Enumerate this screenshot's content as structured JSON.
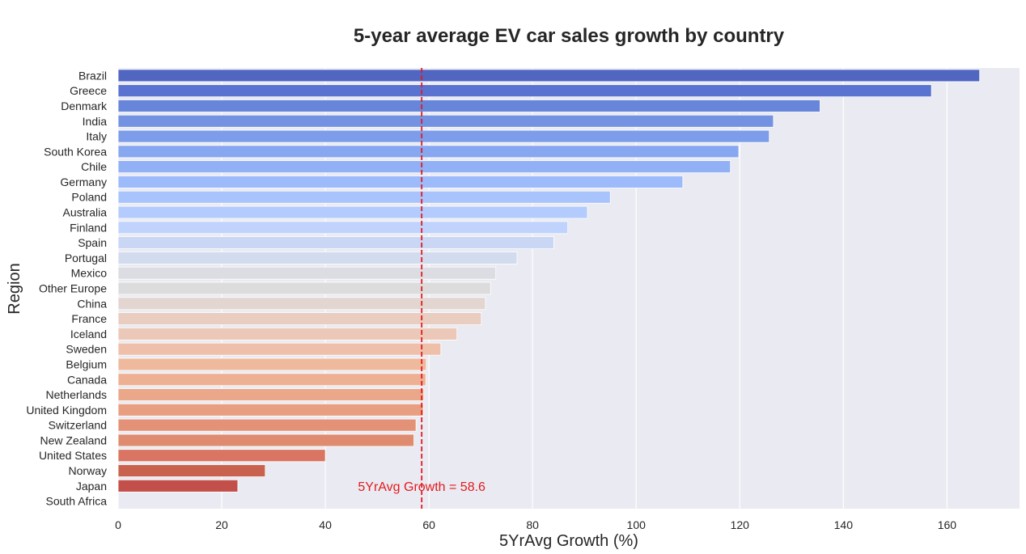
{
  "chart_data": {
    "type": "bar",
    "orientation": "horizontal",
    "title": "5-year average EV car sales growth by country",
    "xlabel": "5YrAvg Growth (%)",
    "ylabel": "Region",
    "xlim": [
      0,
      174
    ],
    "xticks": [
      0,
      20,
      40,
      60,
      80,
      100,
      120,
      140,
      160
    ],
    "grid": true,
    "categories": [
      "Brazil",
      "Greece",
      "Denmark",
      "India",
      "Italy",
      "South Korea",
      "Chile",
      "Germany",
      "Poland",
      "Australia",
      "Finland",
      "Spain",
      "Portugal",
      "Mexico",
      "Other Europe",
      "China",
      "France",
      "Iceland",
      "Sweden",
      "Belgium",
      "Canada",
      "Netherlands",
      "United Kingdom",
      "Switzerland",
      "New Zealand",
      "United States",
      "Norway",
      "Japan",
      "South Africa"
    ],
    "values": [
      166.3,
      157.0,
      135.5,
      126.5,
      125.7,
      119.8,
      118.2,
      109.0,
      95.0,
      90.6,
      86.8,
      84.1,
      77.0,
      72.9,
      71.9,
      70.9,
      70.1,
      65.4,
      62.3,
      59.5,
      59.4,
      59.0,
      58.9,
      57.5,
      57.1,
      40.0,
      28.4,
      23.1,
      0
    ],
    "bar_colors": [
      "#5166c1",
      "#5b73d0",
      "#6886d9",
      "#7492e2",
      "#7d9ce9",
      "#87a7f0",
      "#92b0f5",
      "#9dbbfa",
      "#a9c4fc",
      "#b4ccfd",
      "#bfd3fc",
      "#c9d7f5",
      "#d3dbee",
      "#dbdde2",
      "#dcdcdc",
      "#e3d5cf",
      "#e8cdc0",
      "#ecc8b8",
      "#efc0a9",
      "#efb99d",
      "#eeb093",
      "#eba78a",
      "#e89e81",
      "#e49277",
      "#df8b6f",
      "#d97562",
      "#c9614f",
      "#c24f4a",
      "#b8404a"
    ],
    "reference_line": {
      "value": 58.6,
      "color": "#e31a1c",
      "label": "5YrAvg Growth = 58.6"
    }
  }
}
